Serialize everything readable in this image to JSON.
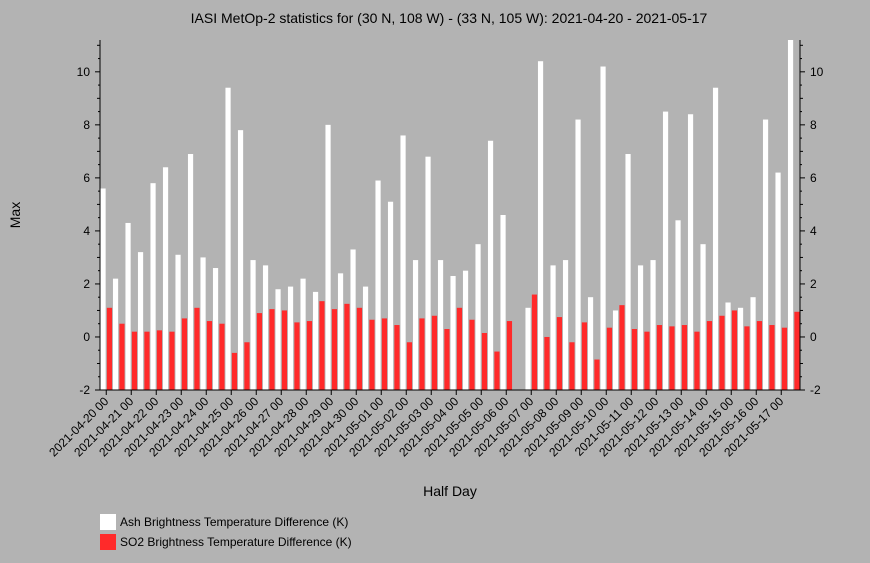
{
  "chart_data": {
    "type": "bar",
    "title": "IASI MetOp-2 statistics for (30 N, 108 W) - (33 N, 105 W): 2021-04-20 - 2021-05-17",
    "xlabel": "Half Day",
    "ylabel": "Max",
    "ylim": [
      -2,
      11.2
    ],
    "yticks": [
      -2,
      0,
      2,
      4,
      6,
      8,
      10
    ],
    "grid": false,
    "legend_position": "bottom-left",
    "tick_labels": [
      "2021-04-20 00",
      "2021-04-21 00",
      "2021-04-22 00",
      "2021-04-23 00",
      "2021-04-24 00",
      "2021-04-25 00",
      "2021-04-26 00",
      "2021-04-27 00",
      "2021-04-28 00",
      "2021-04-29 00",
      "2021-04-30 00",
      "2021-05-01 00",
      "2021-05-02 00",
      "2021-05-03 00",
      "2021-05-04 00",
      "2021-05-05 00",
      "2021-05-06 00",
      "2021-05-07 00",
      "2021-05-08 00",
      "2021-05-09 00",
      "2021-05-10 00",
      "2021-05-11 00",
      "2021-05-12 00",
      "2021-05-13 00",
      "2021-05-14 00",
      "2021-05-15 00",
      "2021-05-16 00",
      "2021-05-17 00"
    ],
    "series": [
      {
        "name": "Ash Brightness Temperature Difference (K)",
        "color": "#ffffff",
        "values": [
          5.6,
          2.2,
          4.3,
          3.2,
          5.8,
          6.4,
          3.1,
          6.9,
          3.0,
          2.6,
          9.4,
          7.8,
          2.9,
          2.7,
          1.8,
          1.9,
          2.2,
          1.7,
          8.0,
          2.4,
          3.3,
          1.9,
          5.9,
          5.1,
          7.6,
          2.9,
          6.8,
          2.9,
          2.3,
          2.5,
          3.5,
          7.4,
          4.6,
          null,
          1.1,
          10.4,
          2.7,
          2.9,
          8.2,
          1.5,
          10.2,
          1.0,
          6.9,
          2.7,
          2.9,
          8.5,
          4.4,
          8.4,
          3.5,
          9.4,
          1.3,
          1.1,
          1.5,
          8.2,
          6.2,
          11.2
        ]
      },
      {
        "name": "SO2 Brightness Temperature Difference (K)",
        "color": "#ff2a2a",
        "values": [
          1.1,
          0.5,
          0.2,
          0.2,
          0.25,
          0.2,
          0.7,
          1.1,
          0.6,
          0.5,
          -0.6,
          -0.2,
          0.9,
          1.05,
          1.0,
          0.55,
          0.6,
          1.35,
          1.05,
          1.25,
          1.1,
          0.65,
          0.7,
          0.45,
          -0.2,
          0.7,
          0.8,
          0.3,
          1.1,
          0.65,
          0.15,
          -0.55,
          0.6,
          null,
          1.6,
          0.0,
          0.75,
          -0.2,
          0.55,
          -0.85,
          0.35,
          1.2,
          0.3,
          0.2,
          0.45,
          0.4,
          0.45,
          0.2,
          0.6,
          0.8,
          1.0,
          0.4,
          0.6,
          0.45,
          0.35,
          0.95
        ]
      }
    ]
  }
}
